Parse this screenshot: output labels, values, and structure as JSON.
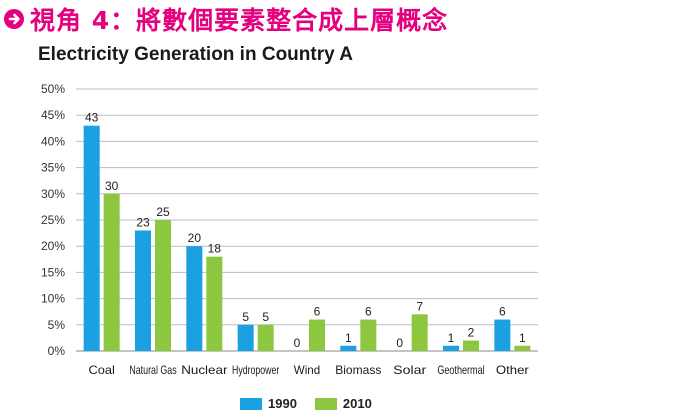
{
  "header": {
    "icon": "arrow-circle-right-icon",
    "text": "視角 4：將數個要素整合成上層概念",
    "color": "#e5007f"
  },
  "chart_data": {
    "type": "bar",
    "title": "Electricity Generation in Country A",
    "xlabel": "",
    "ylabel": "",
    "ylim": [
      0,
      50
    ],
    "yticks": [
      "0%",
      "5%",
      "10%",
      "15%",
      "20%",
      "25%",
      "30%",
      "35%",
      "40%",
      "45%",
      "50%"
    ],
    "grid": true,
    "legend_position": "bottom-center",
    "categories": [
      "Coal",
      "Natural Gas",
      "Nuclear",
      "Hydropower",
      "Wind",
      "Biomass",
      "Solar",
      "Geothermal",
      "Other"
    ],
    "series": [
      {
        "name": "1990",
        "color": "#1ba0e1",
        "values": [
          43,
          23,
          20,
          5,
          0,
          1,
          0,
          1,
          6
        ]
      },
      {
        "name": "2010",
        "color": "#8dc63f",
        "values": [
          30,
          25,
          18,
          5,
          6,
          6,
          7,
          2,
          1
        ]
      }
    ]
  }
}
